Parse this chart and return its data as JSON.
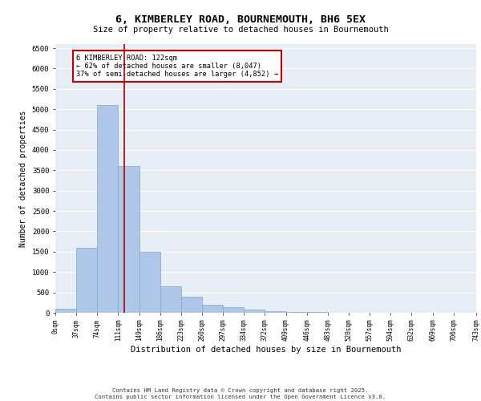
{
  "title": "6, KIMBERLEY ROAD, BOURNEMOUTH, BH6 5EX",
  "subtitle": "Size of property relative to detached houses in Bournemouth",
  "xlabel": "Distribution of detached houses by size in Bournemouth",
  "ylabel": "Number of detached properties",
  "bar_color": "#aec6e8",
  "bar_edge_color": "#7aaad0",
  "background_color": "#e8eef5",
  "grid_color": "#ffffff",
  "vline_x": 122,
  "vline_color": "#aa0000",
  "annotation_title": "6 KIMBERLEY ROAD: 122sqm",
  "annotation_line1": "← 62% of detached houses are smaller (8,047)",
  "annotation_line2": "37% of semi-detached houses are larger (4,852) →",
  "annotation_box_color": "#cc0000",
  "footer1": "Contains HM Land Registry data © Crown copyright and database right 2025.",
  "footer2": "Contains public sector information licensed under the Open Government Licence v3.0.",
  "bin_edges": [
    0,
    37,
    74,
    111,
    148,
    185,
    222,
    259,
    296,
    333,
    370,
    407,
    444,
    481,
    518,
    555,
    592,
    629,
    666,
    703,
    743
  ],
  "bin_labels": [
    "0sqm",
    "37sqm",
    "74sqm",
    "111sqm",
    "149sqm",
    "186sqm",
    "223sqm",
    "260sqm",
    "297sqm",
    "334sqm",
    "372sqm",
    "409sqm",
    "446sqm",
    "483sqm",
    "520sqm",
    "557sqm",
    "594sqm",
    "632sqm",
    "669sqm",
    "706sqm",
    "743sqm"
  ],
  "counts": [
    100,
    1600,
    5100,
    3600,
    1500,
    650,
    400,
    200,
    130,
    80,
    40,
    20,
    15,
    5,
    3,
    2,
    2,
    2,
    1,
    1
  ],
  "ylim": [
    0,
    6600
  ],
  "yticks": [
    0,
    500,
    1000,
    1500,
    2000,
    2500,
    3000,
    3500,
    4000,
    4500,
    5000,
    5500,
    6000,
    6500
  ]
}
